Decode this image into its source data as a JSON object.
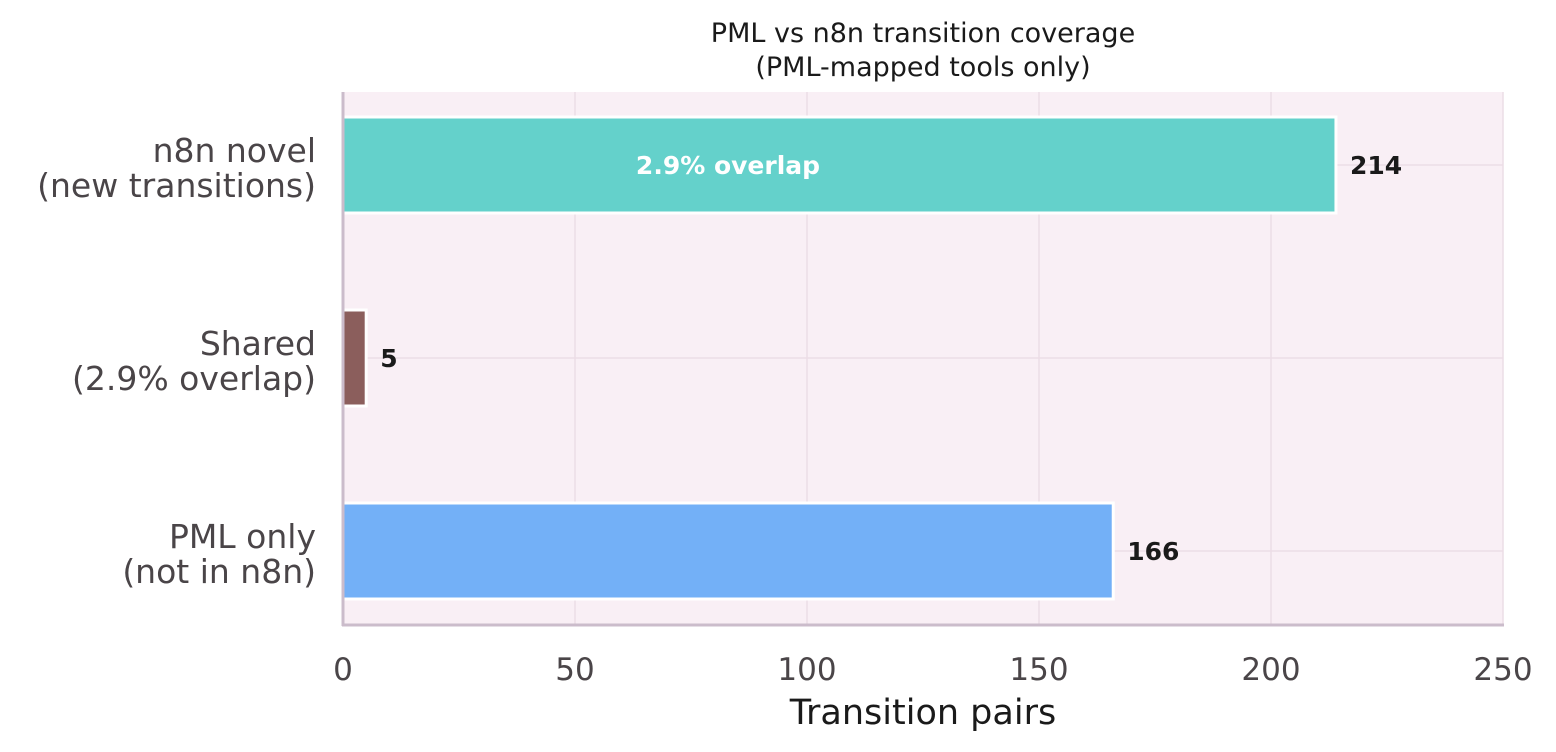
{
  "chart_data": {
    "type": "bar",
    "orientation": "horizontal",
    "title": "PML vs n8n transition coverage",
    "subtitle": "(PML-mapped tools only)",
    "xlabel": "Transition pairs",
    "ylabel": "",
    "xlim": [
      0,
      250
    ],
    "xticks": [
      0,
      50,
      100,
      150,
      200,
      250
    ],
    "grid": true,
    "categories": [
      [
        "PML only",
        "(not in n8n)"
      ],
      [
        "Shared",
        "(2.9% overlap)"
      ],
      [
        "n8n novel",
        "(new transitions)"
      ]
    ],
    "values": [
      166,
      5,
      214
    ],
    "colors": [
      "#73b0f7",
      "#8b5e5c",
      "#64d1cb"
    ],
    "background": "#f9eff5",
    "annotation": "2.9% overlap"
  }
}
